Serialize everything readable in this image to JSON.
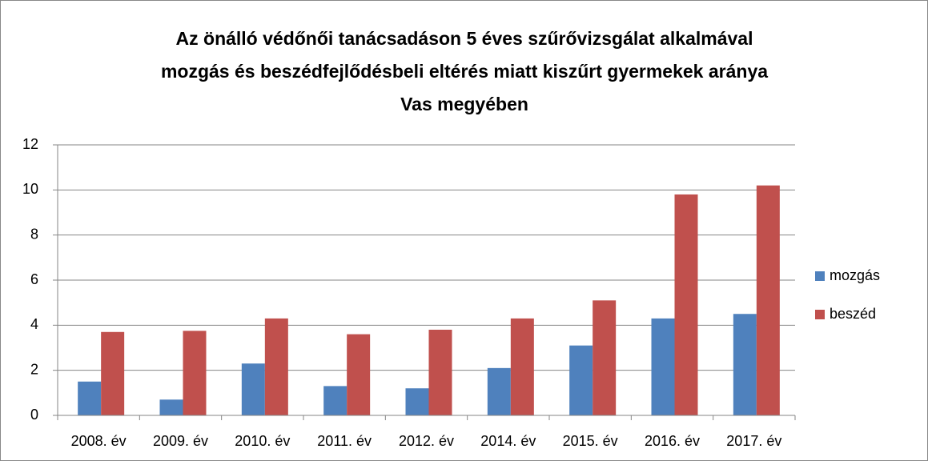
{
  "chart_data": {
    "type": "bar",
    "title": [
      "Az önálló védőnői tanácsadáson 5 éves szűrővizsgálat alkalmával",
      "mozgás és beszédfejlődésbeli eltérés miatt kiszűrt gyermekek aránya",
      "Vas megyében"
    ],
    "categories": [
      "2008. év",
      "2009. év",
      "2010. év",
      "2011. év",
      "2012. év",
      "2014. év",
      "2015. év",
      "2016. év",
      "2017. év"
    ],
    "series": [
      {
        "name": "mozgás",
        "color": "#4f81bd",
        "values": [
          1.5,
          0.7,
          2.3,
          1.3,
          1.2,
          2.1,
          3.1,
          4.3,
          4.5
        ]
      },
      {
        "name": "beszéd",
        "color": "#c0504d",
        "values": [
          3.7,
          3.75,
          4.3,
          3.6,
          3.8,
          4.3,
          5.1,
          9.8,
          10.2
        ]
      }
    ],
    "ylim": [
      0,
      12
    ],
    "yticks": [
      0,
      2,
      4,
      6,
      8,
      10,
      12
    ],
    "grid": true,
    "legend": "right"
  }
}
